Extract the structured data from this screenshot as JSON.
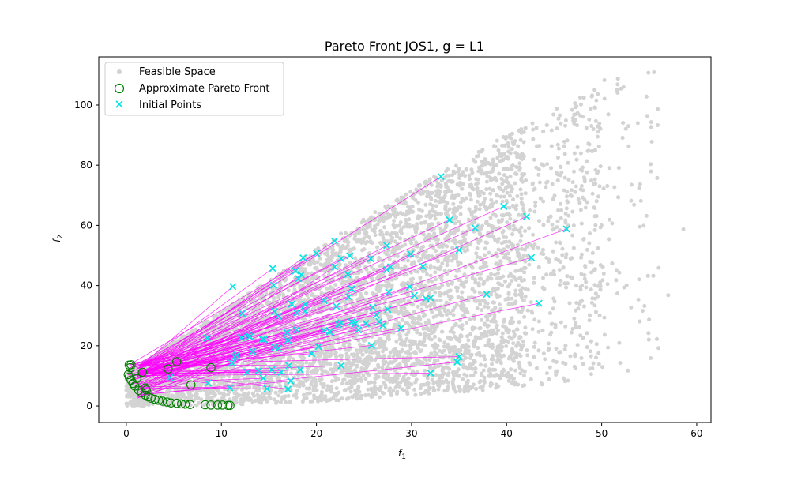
{
  "chart_data": {
    "type": "scatter",
    "title": "Pareto Front JOS1, g = L1",
    "xlabel": "f",
    "xlabel_sub": "1",
    "ylabel": "f",
    "ylabel_sub": "2",
    "xlim": [
      -2.9,
      61.5
    ],
    "ylim": [
      -5.5,
      116.0
    ],
    "xticks": [
      0,
      10,
      20,
      30,
      40,
      50,
      60
    ],
    "yticks": [
      0,
      20,
      40,
      60,
      80,
      100
    ],
    "grid": false,
    "legend_position": "upper left",
    "series": [
      {
        "name": "Feasible Space",
        "marker": "filled-circle",
        "color": "#d3d3d3",
        "note_region": "dense cloud between lower bound f2 ≈ f1²/270 and upper bound f2 ≈ 1.8·f1 + 18, 0 ≤ f1 ≤ 58",
        "points": [
          [
            55.5,
            110.9
          ],
          [
            52.3,
            106.0
          ],
          [
            58.6,
            58.7
          ],
          [
            57.0,
            36.8
          ],
          [
            53.8,
            94.0
          ],
          [
            55.2,
            92.7
          ],
          [
            54.8,
            96.4
          ],
          [
            48.6,
            87.2
          ],
          [
            50.3,
            102.1
          ],
          [
            47.1,
            96.8
          ],
          [
            53.1,
            68.2
          ],
          [
            56.0,
            45.9
          ],
          [
            54.5,
            33.2
          ]
        ]
      },
      {
        "name": "Approximate Pareto Front",
        "marker": "open-circle",
        "color": "#008000",
        "points": [
          [
            0.2,
            10.4
          ],
          [
            0.3,
            9.6
          ],
          [
            0.4,
            12.7
          ],
          [
            0.5,
            8.6
          ],
          [
            0.3,
            13.6
          ],
          [
            0.5,
            13.7
          ],
          [
            0.7,
            7.5
          ],
          [
            0.9,
            6.6
          ],
          [
            1.1,
            9.1
          ],
          [
            1.3,
            5.2
          ],
          [
            1.6,
            4.4
          ],
          [
            1.7,
            11.2
          ],
          [
            2.0,
            3.6
          ],
          [
            2.0,
            6.0
          ],
          [
            2.1,
            5.3
          ],
          [
            2.3,
            3.0
          ],
          [
            2.6,
            2.6
          ],
          [
            3.0,
            2.2
          ],
          [
            3.4,
            1.9
          ],
          [
            3.8,
            1.6
          ],
          [
            4.3,
            1.3
          ],
          [
            4.4,
            12.3
          ],
          [
            4.7,
            1.0
          ],
          [
            5.3,
            14.7
          ],
          [
            5.3,
            0.9
          ],
          [
            5.8,
            0.7
          ],
          [
            6.2,
            0.6
          ],
          [
            6.7,
            0.5
          ],
          [
            6.8,
            7.0
          ],
          [
            8.3,
            0.4
          ],
          [
            8.9,
            0.3
          ],
          [
            8.9,
            12.7
          ],
          [
            9.6,
            0.3
          ],
          [
            10.1,
            0.3
          ],
          [
            10.7,
            0.2
          ],
          [
            10.9,
            0.2
          ]
        ]
      },
      {
        "name": "Initial Points",
        "marker": "x",
        "color": "#00e5e5",
        "points": [
          [
            33.1,
            76.2
          ],
          [
            46.3,
            58.8
          ],
          [
            42.1,
            62.9
          ],
          [
            39.7,
            66.3
          ],
          [
            34.0,
            61.8
          ],
          [
            36.7,
            59.1
          ],
          [
            43.4,
            34.1
          ],
          [
            37.9,
            37.1
          ],
          [
            42.6,
            49.3
          ],
          [
            35.0,
            51.8
          ],
          [
            32.0,
            10.9
          ],
          [
            35.0,
            16.4
          ],
          [
            34.8,
            14.6
          ],
          [
            11.2,
            39.7
          ],
          [
            15.4,
            45.7
          ],
          [
            18.6,
            49.2
          ],
          [
            20.0,
            50.7
          ],
          [
            21.9,
            54.8
          ],
          [
            22.6,
            48.9
          ],
          [
            23.5,
            49.9
          ],
          [
            25.7,
            48.9
          ],
          [
            27.4,
            53.3
          ],
          [
            29.9,
            50.5
          ],
          [
            31.2,
            46.3
          ],
          [
            15.5,
            40.1
          ],
          [
            17.8,
            44.9
          ],
          [
            18.1,
            42.3
          ],
          [
            18.4,
            43.6
          ],
          [
            21.9,
            46.2
          ],
          [
            23.3,
            43.7
          ],
          [
            23.7,
            38.9
          ],
          [
            27.4,
            45.3
          ],
          [
            27.8,
            46.2
          ],
          [
            29.8,
            39.6
          ],
          [
            30.3,
            36.7
          ],
          [
            31.5,
            35.7
          ],
          [
            32.0,
            35.9
          ],
          [
            15.6,
            31.4
          ],
          [
            16.0,
            29.8
          ],
          [
            17.4,
            33.8
          ],
          [
            17.9,
            31.0
          ],
          [
            18.8,
            33.7
          ],
          [
            18.8,
            31.5
          ],
          [
            20.8,
            35.0
          ],
          [
            22.1,
            33.1
          ],
          [
            23.4,
            36.2
          ],
          [
            25.9,
            32.7
          ],
          [
            26.3,
            30.2
          ],
          [
            27.5,
            32.1
          ],
          [
            27.6,
            37.8
          ],
          [
            12.2,
            30.7
          ],
          [
            12.1,
            22.7
          ],
          [
            12.8,
            23.4
          ],
          [
            14.3,
            22.2
          ],
          [
            14.5,
            22.0
          ],
          [
            15.6,
            19.5
          ],
          [
            16.0,
            19.1
          ],
          [
            17.0,
            21.8
          ],
          [
            17.9,
            25.3
          ],
          [
            19.5,
            17.4
          ],
          [
            20.2,
            19.7
          ],
          [
            20.8,
            25.1
          ],
          [
            21.4,
            24.6
          ],
          [
            22.3,
            27.1
          ],
          [
            22.6,
            27.6
          ],
          [
            23.7,
            27.9
          ],
          [
            24.1,
            27.4
          ],
          [
            25.2,
            27.4
          ],
          [
            26.6,
            28.0
          ],
          [
            27.0,
            26.8
          ],
          [
            28.9,
            25.9
          ],
          [
            8.5,
            22.6
          ],
          [
            8.6,
            7.6
          ],
          [
            10.9,
            6.0
          ],
          [
            11.1,
            14.3
          ],
          [
            11.4,
            16.3
          ],
          [
            12.7,
            11.2
          ],
          [
            13.9,
            11.7
          ],
          [
            14.4,
            9.2
          ],
          [
            14.8,
            5.7
          ],
          [
            15.3,
            12.0
          ],
          [
            16.3,
            11.2
          ],
          [
            17.0,
            5.6
          ],
          [
            17.1,
            13.4
          ],
          [
            17.3,
            8.3
          ],
          [
            18.3,
            12.0
          ],
          [
            22.6,
            13.4
          ],
          [
            25.8,
            20.1
          ],
          [
            4.6,
            9.4
          ],
          [
            13.3,
            18.1
          ],
          [
            13.0,
            23.0
          ],
          [
            16.9,
            24.4
          ],
          [
            11.6,
            16.9
          ],
          [
            24.4,
            25.3
          ]
        ]
      }
    ],
    "connectors": {
      "description": "thin magenta lines joining each initial point to its Pareto-front solution",
      "color": "#ff00ff"
    }
  }
}
